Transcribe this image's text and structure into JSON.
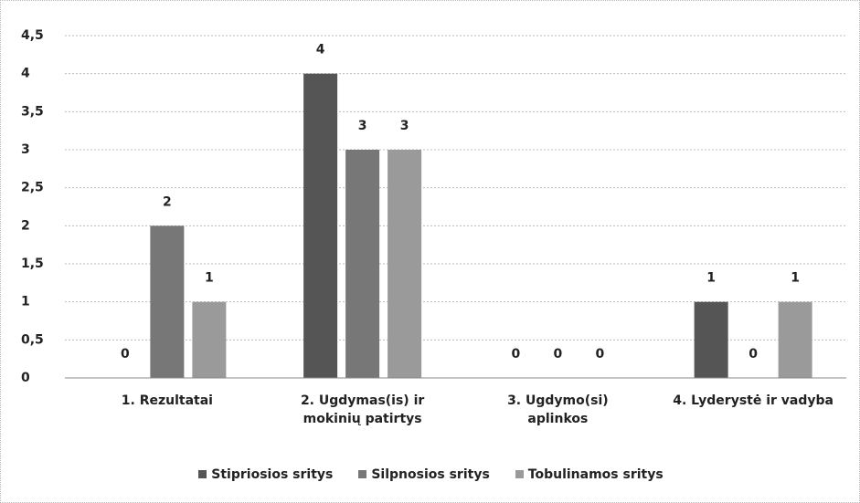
{
  "chart_data": {
    "type": "bar",
    "categories": [
      "1. Rezultatai",
      "2. Ugdymas(is) ir mokinių patirtys",
      "3. Ugdymo(si) aplinkos",
      "4. Lyderystė ir vadyba"
    ],
    "series": [
      {
        "name": "Stipriosios sritys",
        "color": "#555555",
        "values": [
          0,
          4,
          0,
          1
        ]
      },
      {
        "name": "Silpnosios sritys",
        "color": "#777777",
        "values": [
          2,
          3,
          0,
          0
        ]
      },
      {
        "name": "Tobulinamos sritys",
        "color": "#9a9a9a",
        "values": [
          1,
          3,
          0,
          1
        ]
      }
    ],
    "ylim": [
      0,
      4.5
    ],
    "yticks": [
      0,
      {
        "value": 0.5,
        "label": "0,5"
      },
      1,
      {
        "value": 1.5,
        "label": "1,5"
      },
      2,
      {
        "value": 2.5,
        "label": "2,5"
      },
      3,
      {
        "value": 3.5,
        "label": "3,5"
      },
      4,
      {
        "value": 4.5,
        "label": "4,5"
      }
    ],
    "grid": true,
    "legend": "bottom"
  }
}
